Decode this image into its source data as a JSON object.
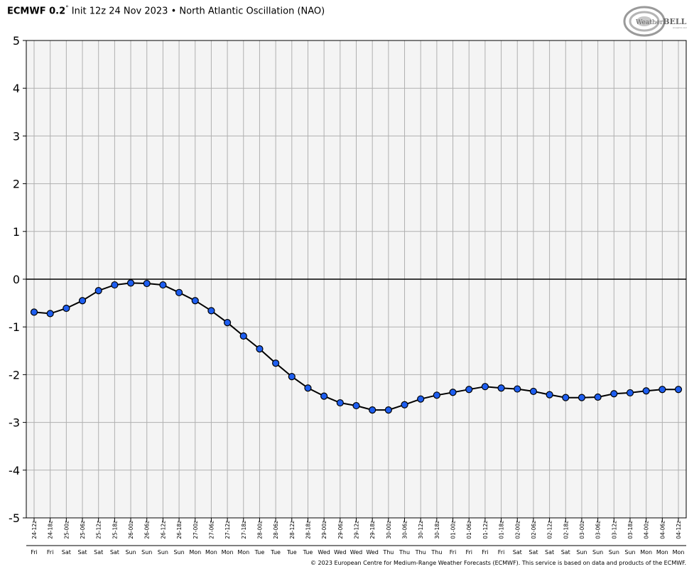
{
  "header": {
    "model": "ECMWF 0.2",
    "degree": "°",
    "init": "Init 12z 24 Nov 2023",
    "separator": "•",
    "subject": "North Atlantic Oscillation (NAO)"
  },
  "logo": {
    "text_prefix": "Weather",
    "text_suffix": "BELL",
    "subtext": "Analytics LLC"
  },
  "footer": {
    "text": "© 2023 European Centre for Medium-Range Weather Forecasts (ECMWF). This service is based on data and products of the ECMWF."
  },
  "colors": {
    "line": "#000000",
    "marker": "#1e5ef0",
    "plot_bg": "#f4f4f4",
    "grid": "#b0b0b0",
    "zero_line": "#000000"
  },
  "chart_data": {
    "type": "line",
    "ylim": [
      -5,
      5
    ],
    "yticks": [
      5,
      4,
      3,
      2,
      1,
      0,
      -1,
      -2,
      -3,
      -4,
      -5
    ],
    "grid": true,
    "categories": [
      "24-12z",
      "24-18z",
      "25-00z",
      "25-06z",
      "25-12z",
      "25-18z",
      "26-00z",
      "26-06z",
      "26-12z",
      "26-18z",
      "27-00z",
      "27-06z",
      "27-12z",
      "27-18z",
      "28-00z",
      "28-06z",
      "28-12z",
      "28-18z",
      "29-00z",
      "29-06z",
      "29-12z",
      "29-18z",
      "30-00z",
      "30-06z",
      "30-12z",
      "30-18z",
      "01-00z",
      "01-06z",
      "01-12z",
      "01-18z",
      "02-00z",
      "02-06z",
      "02-12z",
      "02-18z",
      "03-00z",
      "03-06z",
      "03-12z",
      "03-18z",
      "04-00z",
      "04-06z",
      "04-12z"
    ],
    "day_labels": [
      "Fri",
      "Fri",
      "Sat",
      "Sat",
      "Sat",
      "Sat",
      "Sun",
      "Sun",
      "Sun",
      "Sun",
      "Mon",
      "Mon",
      "Mon",
      "Mon",
      "Tue",
      "Tue",
      "Tue",
      "Tue",
      "Wed",
      "Wed",
      "Wed",
      "Wed",
      "Thu",
      "Thu",
      "Thu",
      "Thu",
      "Fri",
      "Fri",
      "Fri",
      "Fri",
      "Sat",
      "Sat",
      "Sat",
      "Sat",
      "Sun",
      "Sun",
      "Sun",
      "Sun",
      "Mon",
      "Mon",
      "Mon"
    ],
    "values": [
      -0.69,
      -0.72,
      -0.61,
      -0.45,
      -0.24,
      -0.12,
      -0.08,
      -0.09,
      -0.12,
      -0.28,
      -0.45,
      -0.66,
      -0.91,
      -1.19,
      -1.46,
      -1.76,
      -2.04,
      -2.28,
      -2.45,
      -2.59,
      -2.65,
      -2.74,
      -2.74,
      -2.63,
      -2.51,
      -2.43,
      -2.37,
      -2.31,
      -2.25,
      -2.28,
      -2.3,
      -2.35,
      -2.42,
      -2.48,
      -2.48,
      -2.47,
      -2.4,
      -2.38,
      -2.34,
      -2.31,
      -2.31
    ]
  }
}
